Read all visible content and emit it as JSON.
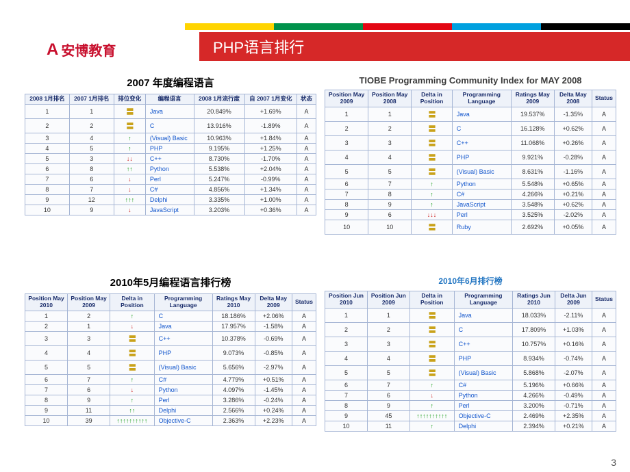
{
  "stripe_colors": [
    "#ffd400",
    "#00924b",
    "#e30613",
    "#00a0df",
    "#000000"
  ],
  "logo_text": "安博教育",
  "header_title": "PHP语言排行",
  "page_number": "3",
  "panel1": {
    "title": "2007 年度编程语言",
    "headers": [
      "2008 1月排名",
      "2007 1月排名",
      "排位变化",
      "编程语言",
      "2008 1月流行度",
      "自 2007 1月变化",
      "状态"
    ],
    "rows": [
      {
        "p": "1",
        "q": "1",
        "d": "same",
        "lang": "Java",
        "r": "20.849%",
        "dv": "+1.69%",
        "s": "A"
      },
      {
        "p": "2",
        "q": "2",
        "d": "same",
        "lang": "C",
        "r": "13.916%",
        "dv": "-1.89%",
        "s": "A"
      },
      {
        "p": "3",
        "q": "4",
        "d": "up",
        "lang": "(Visual) Basic",
        "r": "10.963%",
        "dv": "+1.84%",
        "s": "A"
      },
      {
        "p": "4",
        "q": "5",
        "d": "up",
        "lang": "PHP",
        "r": "9.195%",
        "dv": "+1.25%",
        "s": "A"
      },
      {
        "p": "5",
        "q": "3",
        "d": "down2",
        "lang": "C++",
        "r": "8.730%",
        "dv": "-1.70%",
        "s": "A"
      },
      {
        "p": "6",
        "q": "8",
        "d": "up2",
        "lang": "Python",
        "r": "5.538%",
        "dv": "+2.04%",
        "s": "A"
      },
      {
        "p": "7",
        "q": "6",
        "d": "down",
        "lang": "Perl",
        "r": "5.247%",
        "dv": "-0.99%",
        "s": "A"
      },
      {
        "p": "8",
        "q": "7",
        "d": "down",
        "lang": "C#",
        "r": "4.856%",
        "dv": "+1.34%",
        "s": "A"
      },
      {
        "p": "9",
        "q": "12",
        "d": "up3",
        "lang": "Delphi",
        "r": "3.335%",
        "dv": "+1.00%",
        "s": "A"
      },
      {
        "p": "10",
        "q": "9",
        "d": "down",
        "lang": "JavaScript",
        "r": "3.203%",
        "dv": "+0.36%",
        "s": "A"
      }
    ]
  },
  "panel2": {
    "title": "TIOBE Programming Community Index for MAY 2008",
    "headers": [
      "Position May 2009",
      "Position May 2008",
      "Delta in Position",
      "Programming Language",
      "Ratings May 2009",
      "Delta May 2008",
      "Status"
    ],
    "rows": [
      {
        "p": "1",
        "q": "1",
        "d": "same",
        "lang": "Java",
        "r": "19.537%",
        "dv": "-1.35%",
        "s": "A"
      },
      {
        "p": "2",
        "q": "2",
        "d": "same",
        "lang": "C",
        "r": "16.128%",
        "dv": "+0.62%",
        "s": "A"
      },
      {
        "p": "3",
        "q": "3",
        "d": "same",
        "lang": "C++",
        "r": "11.068%",
        "dv": "+0.26%",
        "s": "A"
      },
      {
        "p": "4",
        "q": "4",
        "d": "same",
        "lang": "PHP",
        "r": "9.921%",
        "dv": "-0.28%",
        "s": "A"
      },
      {
        "p": "5",
        "q": "5",
        "d": "same",
        "lang": "(Visual) Basic",
        "r": "8.631%",
        "dv": "-1.16%",
        "s": "A"
      },
      {
        "p": "6",
        "q": "7",
        "d": "up",
        "lang": "Python",
        "r": "5.548%",
        "dv": "+0.65%",
        "s": "A"
      },
      {
        "p": "7",
        "q": "8",
        "d": "up",
        "lang": "C#",
        "r": "4.266%",
        "dv": "+0.21%",
        "s": "A"
      },
      {
        "p": "8",
        "q": "9",
        "d": "up",
        "lang": "JavaScript",
        "r": "3.548%",
        "dv": "+0.62%",
        "s": "A"
      },
      {
        "p": "9",
        "q": "6",
        "d": "down3",
        "lang": "Perl",
        "r": "3.525%",
        "dv": "-2.02%",
        "s": "A"
      },
      {
        "p": "10",
        "q": "10",
        "d": "same",
        "lang": "Ruby",
        "r": "2.692%",
        "dv": "+0.05%",
        "s": "A"
      }
    ]
  },
  "panel3": {
    "title": "2010年5月编程语言排行榜",
    "headers": [
      "Position May 2010",
      "Position May 2009",
      "Delta in Position",
      "Programming Language",
      "Ratings May 2010",
      "Delta May 2009",
      "Status"
    ],
    "rows": [
      {
        "p": "1",
        "q": "2",
        "d": "up",
        "lang": "C",
        "r": "18.186%",
        "dv": "+2.06%",
        "s": "A"
      },
      {
        "p": "2",
        "q": "1",
        "d": "down",
        "lang": "Java",
        "r": "17.957%",
        "dv": "-1.58%",
        "s": "A"
      },
      {
        "p": "3",
        "q": "3",
        "d": "same",
        "lang": "C++",
        "r": "10.378%",
        "dv": "-0.69%",
        "s": "A"
      },
      {
        "p": "4",
        "q": "4",
        "d": "same",
        "lang": "PHP",
        "r": "9.073%",
        "dv": "-0.85%",
        "s": "A"
      },
      {
        "p": "5",
        "q": "5",
        "d": "same",
        "lang": "(Visual) Basic",
        "r": "5.656%",
        "dv": "-2.97%",
        "s": "A"
      },
      {
        "p": "6",
        "q": "7",
        "d": "up",
        "lang": "C#",
        "r": "4.779%",
        "dv": "+0.51%",
        "s": "A"
      },
      {
        "p": "7",
        "q": "6",
        "d": "down",
        "lang": "Python",
        "r": "4.097%",
        "dv": "-1.45%",
        "s": "A"
      },
      {
        "p": "8",
        "q": "9",
        "d": "up",
        "lang": "Perl",
        "r": "3.286%",
        "dv": "-0.24%",
        "s": "A"
      },
      {
        "p": "9",
        "q": "11",
        "d": "up2",
        "lang": "Delphi",
        "r": "2.566%",
        "dv": "+0.24%",
        "s": "A"
      },
      {
        "p": "10",
        "q": "39",
        "d": "up10",
        "lang": "Objective-C",
        "r": "2.363%",
        "dv": "+2.23%",
        "s": "A"
      }
    ]
  },
  "panel4": {
    "title": "2010年6月排行榜",
    "headers": [
      "Position Jun 2010",
      "Position Jun 2009",
      "Delta in Position",
      "Programming Language",
      "Ratings Jun 2010",
      "Delta Jun 2009",
      "Status"
    ],
    "rows": [
      {
        "p": "1",
        "q": "1",
        "d": "same",
        "lang": "Java",
        "r": "18.033%",
        "dv": "-2.11%",
        "s": "A"
      },
      {
        "p": "2",
        "q": "2",
        "d": "same",
        "lang": "C",
        "r": "17.809%",
        "dv": "+1.03%",
        "s": "A"
      },
      {
        "p": "3",
        "q": "3",
        "d": "same",
        "lang": "C++",
        "r": "10.757%",
        "dv": "+0.16%",
        "s": "A"
      },
      {
        "p": "4",
        "q": "4",
        "d": "same",
        "lang": "PHP",
        "r": "8.934%",
        "dv": "-0.74%",
        "s": "A"
      },
      {
        "p": "5",
        "q": "5",
        "d": "same",
        "lang": "(Visual) Basic",
        "r": "5.868%",
        "dv": "-2.07%",
        "s": "A"
      },
      {
        "p": "6",
        "q": "7",
        "d": "up",
        "lang": "C#",
        "r": "5.196%",
        "dv": "+0.66%",
        "s": "A"
      },
      {
        "p": "7",
        "q": "6",
        "d": "down",
        "lang": "Python",
        "r": "4.266%",
        "dv": "-0.49%",
        "s": "A"
      },
      {
        "p": "8",
        "q": "9",
        "d": "up",
        "lang": "Perl",
        "r": "3.200%",
        "dv": "-0.71%",
        "s": "A"
      },
      {
        "p": "9",
        "q": "45",
        "d": "up10",
        "lang": "Objective-C",
        "r": "2.469%",
        "dv": "+2.35%",
        "s": "A"
      },
      {
        "p": "10",
        "q": "11",
        "d": "up",
        "lang": "Delphi",
        "r": "2.394%",
        "dv": "+0.21%",
        "s": "A"
      }
    ]
  }
}
